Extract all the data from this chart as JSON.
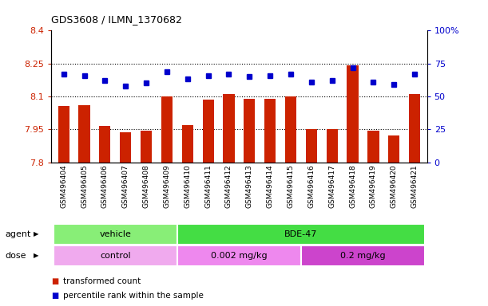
{
  "title": "GDS3608 / ILMN_1370682",
  "categories": [
    "GSM496404",
    "GSM496405",
    "GSM496406",
    "GSM496407",
    "GSM496408",
    "GSM496409",
    "GSM496410",
    "GSM496411",
    "GSM496412",
    "GSM496413",
    "GSM496414",
    "GSM496415",
    "GSM496416",
    "GSM496417",
    "GSM496418",
    "GSM496419",
    "GSM496420",
    "GSM496421"
  ],
  "bar_values": [
    8.055,
    8.06,
    7.965,
    7.935,
    7.945,
    8.1,
    7.97,
    8.085,
    8.11,
    8.09,
    8.09,
    8.1,
    7.95,
    7.95,
    8.24,
    7.945,
    7.92,
    8.11
  ],
  "dot_values": [
    67,
    66,
    62,
    58,
    60,
    69,
    63,
    66,
    67,
    65,
    66,
    67,
    61,
    62,
    72,
    61,
    59,
    67
  ],
  "ymin": 7.8,
  "ymax": 8.4,
  "ylim_left": [
    7.8,
    8.4
  ],
  "ylim_right": [
    0,
    100
  ],
  "yticks_left": [
    7.8,
    7.95,
    8.1,
    8.25,
    8.4
  ],
  "yticks_right": [
    0,
    25,
    50,
    75,
    100
  ],
  "ytick_labels_left": [
    "7.8",
    "7.95",
    "8.1",
    "8.25",
    "8.4"
  ],
  "ytick_labels_right": [
    "0",
    "25",
    "50",
    "75",
    "100%"
  ],
  "hlines": [
    7.95,
    8.1,
    8.25
  ],
  "bar_color": "#cc2200",
  "dot_color": "#0000cc",
  "bg_color": "#ffffff",
  "agent_row": [
    {
      "label": "vehicle",
      "start": 0,
      "end": 5,
      "color": "#88ee77"
    },
    {
      "label": "BDE-47",
      "start": 6,
      "end": 17,
      "color": "#44dd44"
    }
  ],
  "dose_row": [
    {
      "label": "control",
      "start": 0,
      "end": 5,
      "color": "#f0aaee"
    },
    {
      "label": "0.002 mg/kg",
      "start": 6,
      "end": 11,
      "color": "#ee88ee"
    },
    {
      "label": "0.2 mg/kg",
      "start": 12,
      "end": 17,
      "color": "#cc44cc"
    }
  ],
  "agent_label": "agent",
  "dose_label": "dose",
  "legend_items": [
    {
      "color": "#cc2200",
      "label": "transformed count"
    },
    {
      "color": "#0000cc",
      "label": "percentile rank within the sample"
    }
  ],
  "tick_color_left": "#cc2200",
  "tick_color_right": "#0000cc"
}
